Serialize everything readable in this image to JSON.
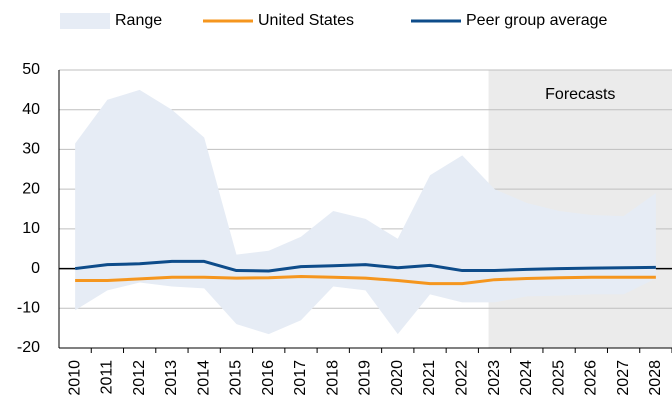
{
  "chart_data": {
    "type": "line",
    "categories": [
      "2010",
      "2011",
      "2012",
      "2013",
      "2014",
      "2015",
      "2016",
      "2017",
      "2018",
      "2019",
      "2020",
      "2021",
      "2022",
      "2023",
      "2024",
      "2025",
      "2026",
      "2027",
      "2028"
    ],
    "series": [
      {
        "name": "Range",
        "color": "#e6ecf5",
        "high": [
          31.5,
          42.5,
          45,
          40,
          33,
          3.5,
          4.5,
          8,
          14.5,
          12.5,
          7.5,
          23.5,
          28.5,
          20,
          16.5,
          14.5,
          13.5,
          13.2,
          19
        ],
        "low": [
          -10.5,
          -5.5,
          -3.5,
          -4.5,
          -5,
          -14,
          -16.5,
          -13,
          -4.5,
          -5.5,
          -16.5,
          -6.5,
          -8.5,
          -8.5,
          -7,
          -6.8,
          -6.5,
          -6.5,
          -2.5
        ]
      },
      {
        "name": "United States",
        "color": "#f5961e",
        "values": [
          -3,
          -3,
          -2.6,
          -2.2,
          -2.2,
          -2.4,
          -2.3,
          -2,
          -2.2,
          -2.4,
          -3,
          -3.8,
          -3.8,
          -2.8,
          -2.5,
          -2.3,
          -2.2,
          -2.2,
          -2.2
        ]
      },
      {
        "name": "Peer group average",
        "color": "#0e4c8a",
        "values": [
          0,
          1,
          1.2,
          1.8,
          1.8,
          -0.5,
          -0.6,
          0.5,
          0.7,
          1,
          0.2,
          0.8,
          -0.5,
          -0.5,
          -0.2,
          0,
          0.1,
          0.2,
          0.3
        ]
      }
    ],
    "forecast_label": "Forecasts",
    "forecast_start": "2023",
    "ylim": [
      -20,
      50
    ],
    "yticks": [
      -20,
      -10,
      0,
      10,
      20,
      30,
      40,
      50
    ],
    "grid": true
  }
}
